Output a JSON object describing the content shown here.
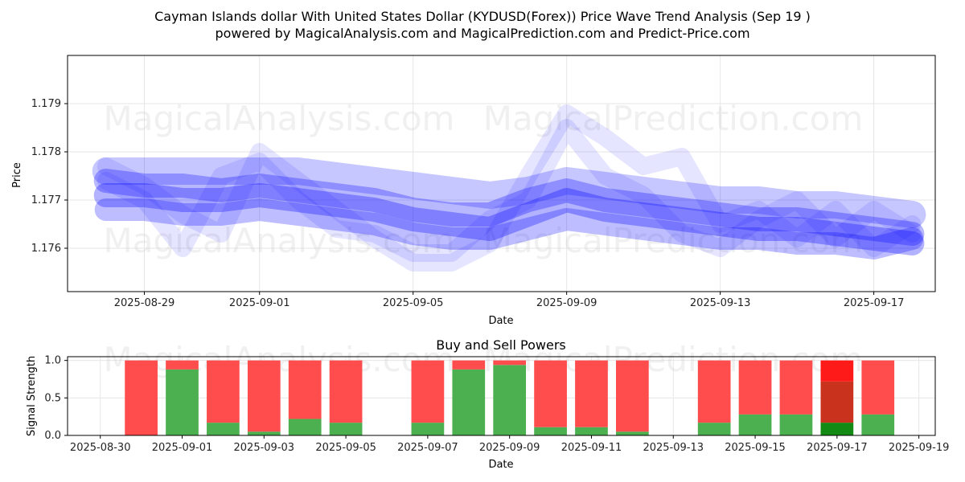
{
  "title_line1": "Cayman Islands dollar With United States Dollar (KYDUSD(Forex)) Price Wave Trend Analysis (Sep 19 )",
  "title_line2": "powered by MagicalAnalysis.com and MagicalPrediction.com and Predict-Price.com",
  "watermarks": {
    "left": "MagicalAnalysis.com",
    "right": "MagicalPrediction.com"
  },
  "colors": {
    "wave": "#0000ff",
    "buy": "#4caf50",
    "sell": "#ff4d4d",
    "buy_today": "#138a13",
    "sell_today": "#ff1a1a",
    "mid_today": "#c9331e"
  },
  "chart_data": [
    {
      "type": "line",
      "title": "",
      "xlabel": "Date",
      "ylabel": "Price",
      "x_ticks": [
        "2025-08-29",
        "2025-09-01",
        "2025-09-05",
        "2025-09-09",
        "2025-09-13",
        "2025-09-17"
      ],
      "y_ticks": [
        "1.176",
        "1.177",
        "1.178",
        "1.179"
      ],
      "xlim": [
        "2025-08-27",
        "2025-09-18.6"
      ],
      "ylim": [
        1.1751,
        1.18
      ],
      "grid": true,
      "x_dates": [
        "2025-08-28",
        "2025-08-29",
        "2025-08-30",
        "2025-08-31",
        "2025-09-01",
        "2025-09-02",
        "2025-09-03",
        "2025-09-04",
        "2025-09-05",
        "2025-09-06",
        "2025-09-07",
        "2025-09-08",
        "2025-09-09",
        "2025-09-10",
        "2025-09-11",
        "2025-09-12",
        "2025-09-13",
        "2025-09-14",
        "2025-09-15",
        "2025-09-16",
        "2025-09-17",
        "2025-09-18"
      ],
      "series": [
        {
          "values": [
            1.1776,
            1.1776,
            1.1776,
            1.1776,
            1.1776,
            1.1776,
            1.1775,
            1.1774,
            1.1773,
            1.1772,
            1.1771,
            1.1772,
            1.1774,
            1.1773,
            1.1772,
            1.1771,
            1.177,
            1.177,
            1.1769,
            1.1769,
            1.1768,
            1.1767
          ]
        },
        {
          "values": [
            1.1774,
            1.1773,
            1.1773,
            1.1772,
            1.1773,
            1.1772,
            1.1771,
            1.177,
            1.1768,
            1.1767,
            1.1767,
            1.177,
            1.1772,
            1.177,
            1.1769,
            1.1768,
            1.1767,
            1.1766,
            1.1766,
            1.1765,
            1.1764,
            1.1763
          ]
        },
        {
          "values": [
            1.1771,
            1.1771,
            1.177,
            1.177,
            1.1771,
            1.177,
            1.1769,
            1.1768,
            1.1766,
            1.1765,
            1.1764,
            1.1767,
            1.177,
            1.1768,
            1.1767,
            1.1766,
            1.1765,
            1.1764,
            1.1764,
            1.1763,
            1.1762,
            1.1761
          ]
        },
        {
          "values": [
            1.1768,
            1.1768,
            1.1767,
            1.1767,
            1.1768,
            1.1767,
            1.1766,
            1.1765,
            1.1763,
            1.1762,
            1.1762,
            1.1764,
            1.1766,
            1.1765,
            1.1764,
            1.1763,
            1.1762,
            1.1762,
            1.1761,
            1.1761,
            1.176,
            1.1762
          ]
        },
        {
          "values": [
            1.1777,
            1.1773,
            1.1767,
            1.1763,
            1.178,
            1.1774,
            1.1768,
            1.1762,
            1.1757,
            1.1757,
            1.1761,
            1.1775,
            1.1788,
            1.1783,
            1.1777,
            1.1779,
            1.1765,
            1.1768,
            1.1762,
            1.1768,
            1.176,
            1.1765
          ]
        },
        {
          "values": [
            1.1774,
            1.177,
            1.176,
            1.1775,
            1.1778,
            1.177,
            1.1764,
            1.1763,
            1.1759,
            1.1759,
            1.1766,
            1.177,
            1.1785,
            1.1775,
            1.1771,
            1.1763,
            1.176,
            1.1766,
            1.177,
            1.1762,
            1.1768,
            1.1763
          ]
        }
      ]
    },
    {
      "type": "bar",
      "title": "Buy and Sell Powers",
      "xlabel": "Date",
      "ylabel": "Signal Strength",
      "x_ticks": [
        "2025-08-30",
        "2025-09-01",
        "2025-09-03",
        "2025-09-05",
        "2025-09-07",
        "2025-09-09",
        "2025-09-11",
        "2025-09-13",
        "2025-09-15",
        "2025-09-17",
        "2025-09-19"
      ],
      "y_ticks": [
        "0.0",
        "0.5",
        "1.0"
      ],
      "xlim": [
        "2025-08-29.2",
        "2025-09-19.4"
      ],
      "ylim": [
        0,
        1.05
      ],
      "grid": true,
      "categories": [
        "2025-08-31",
        "2025-09-01",
        "2025-09-02",
        "2025-09-03",
        "2025-09-04",
        "2025-09-05",
        "2025-09-07",
        "2025-09-08",
        "2025-09-09",
        "2025-09-10",
        "2025-09-11",
        "2025-09-12",
        "2025-09-14",
        "2025-09-15",
        "2025-09-16",
        "2025-09-17",
        "2025-09-18"
      ],
      "series": [
        {
          "name": "Buy",
          "values": [
            0.0,
            0.88,
            0.17,
            0.05,
            0.22,
            0.17,
            0.17,
            0.88,
            0.94,
            0.11,
            0.11,
            0.05,
            0.17,
            0.28,
            0.28,
            0.17,
            0.28
          ]
        },
        {
          "name": "Sell",
          "values": [
            1.0,
            0.12,
            0.83,
            0.95,
            0.78,
            0.83,
            0.83,
            0.12,
            0.06,
            0.89,
            0.89,
            0.95,
            0.83,
            0.72,
            0.72,
            0.83,
            0.72
          ]
        }
      ],
      "today_overlay": {
        "date": "2025-09-17",
        "mid_upper": 0.72
      }
    }
  ]
}
